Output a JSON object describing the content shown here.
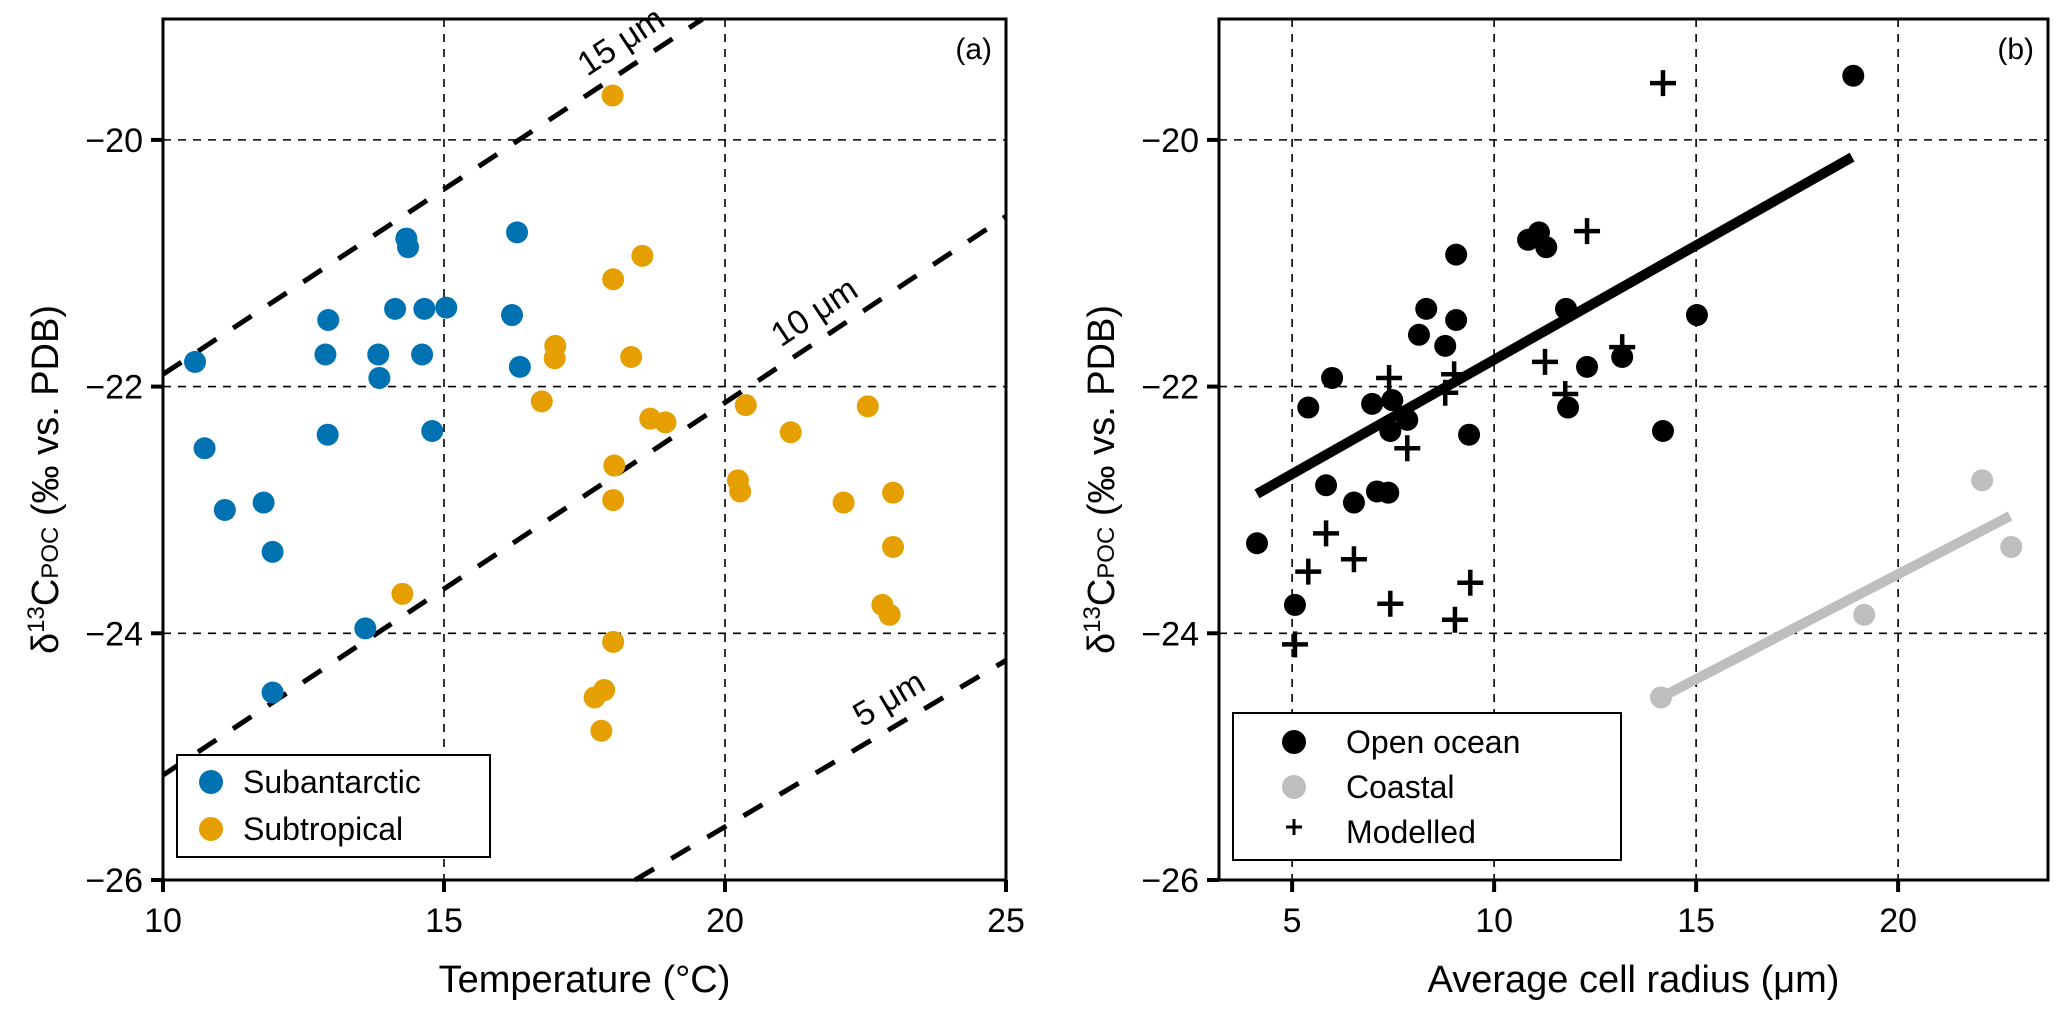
{
  "chart_data": [
    {
      "panel": "(a)",
      "type": "scatter",
      "xlabel": "Temperature (°C)",
      "ylabel": "δ13CPOC (‰ vs. PDB)",
      "ylabel_parts": {
        "delta": "δ",
        "sup": "13",
        "main": "C",
        "sub": "POC",
        "rest": " (‰ vs. PDB)"
      },
      "xlim": [
        10,
        25
      ],
      "ylim": [
        -26,
        -19.02
      ],
      "xticks": [
        10,
        15,
        20,
        25
      ],
      "xtick_labels": [
        "10",
        "15",
        "20",
        "25"
      ],
      "yticks": [
        -26,
        -24,
        -22,
        -20
      ],
      "ytick_labels": [
        "−26",
        "−24",
        "−22",
        "−20"
      ],
      "grid": true,
      "legend": {
        "placement": "bottom-left",
        "entries": [
          "Subantarctic",
          "Subtropical"
        ]
      },
      "series": [
        {
          "name": "Subantarctic",
          "color": "#0072b2",
          "marker": "circle",
          "points": [
            [
              10.57,
              -21.8
            ],
            [
              10.74,
              -22.5
            ],
            [
              11.1,
              -23.0
            ],
            [
              11.79,
              -22.94
            ],
            [
              11.95,
              -23.34
            ],
            [
              11.95,
              -24.48
            ],
            [
              12.94,
              -21.46
            ],
            [
              12.89,
              -21.74
            ],
            [
              12.93,
              -22.39
            ],
            [
              13.83,
              -21.74
            ],
            [
              13.85,
              -21.93
            ],
            [
              14.13,
              -21.37
            ],
            [
              14.33,
              -20.8
            ],
            [
              14.36,
              -20.87
            ],
            [
              14.65,
              -21.37
            ],
            [
              14.61,
              -21.74
            ],
            [
              14.79,
              -22.36
            ],
            [
              15.04,
              -21.36
            ],
            [
              13.6,
              -23.96
            ],
            [
              16.3,
              -20.75
            ],
            [
              16.21,
              -21.42
            ],
            [
              16.35,
              -21.84
            ]
          ]
        },
        {
          "name": "Subtropical",
          "color": "#e69f00",
          "marker": "circle",
          "points": [
            [
              14.26,
              -23.68
            ],
            [
              16.74,
              -22.12
            ],
            [
              16.98,
              -21.67
            ],
            [
              16.97,
              -21.77
            ],
            [
              18.0,
              -19.64
            ],
            [
              18.53,
              -20.94
            ],
            [
              18.01,
              -21.13
            ],
            [
              18.33,
              -21.76
            ],
            [
              18.67,
              -22.26
            ],
            [
              18.94,
              -22.29
            ],
            [
              18.03,
              -22.64
            ],
            [
              18.01,
              -22.92
            ],
            [
              18.01,
              -24.07
            ],
            [
              17.85,
              -24.46
            ],
            [
              17.68,
              -24.52
            ],
            [
              17.8,
              -24.79
            ],
            [
              20.37,
              -22.15
            ],
            [
              20.23,
              -22.76
            ],
            [
              20.27,
              -22.85
            ],
            [
              21.17,
              -22.37
            ],
            [
              22.54,
              -22.16
            ],
            [
              22.11,
              -22.94
            ],
            [
              22.99,
              -22.86
            ],
            [
              22.99,
              -23.3
            ],
            [
              22.8,
              -23.77
            ],
            [
              22.93,
              -23.85
            ]
          ]
        }
      ],
      "reference_lines": [
        {
          "label": "15 μm",
          "style": "dashed",
          "color": "#000000",
          "x": [
            10,
            19.6
          ],
          "y": [
            -21.9,
            -19.02
          ]
        },
        {
          "label": "10 μm",
          "style": "dashed",
          "color": "#000000",
          "x": [
            10,
            25
          ],
          "y": [
            -25.15,
            -20.62
          ]
        },
        {
          "label": "5 μm",
          "style": "dashed",
          "color": "#000000",
          "x": [
            18.4,
            25
          ],
          "y": [
            -26,
            -24.22
          ]
        }
      ]
    },
    {
      "panel": "(b)",
      "type": "scatter",
      "xlabel": "Average cell radius (μm)",
      "ylabel": "δ13CPOC (‰ vs. PDB)",
      "ylabel_parts": {
        "delta": "δ",
        "sup": "13",
        "main": "C",
        "sub": "POC",
        "rest": " (‰ vs. PDB)"
      },
      "xlim": [
        3.19,
        23.71
      ],
      "ylim": [
        -26,
        -19.02
      ],
      "xticks": [
        5,
        10,
        15,
        20
      ],
      "xtick_labels": [
        "5",
        "10",
        "15",
        "20"
      ],
      "yticks": [
        -26,
        -24,
        -22,
        -20
      ],
      "ytick_labels": [
        "−26",
        "−24",
        "−22",
        "−20"
      ],
      "grid": true,
      "legend": {
        "placement": "bottom-left",
        "entries": [
          "Open ocean",
          "Coastal",
          "Modelled"
        ]
      },
      "series": [
        {
          "name": "Open ocean",
          "color": "#000000",
          "marker": "circle",
          "points": [
            [
              4.13,
              -23.27
            ],
            [
              5.07,
              -23.77
            ],
            [
              5.4,
              -22.17
            ],
            [
              5.99,
              -21.93
            ],
            [
              5.84,
              -22.8
            ],
            [
              6.53,
              -22.94
            ],
            [
              6.98,
              -22.14
            ],
            [
              7.1,
              -22.85
            ],
            [
              7.38,
              -22.86
            ],
            [
              7.48,
              -22.11
            ],
            [
              7.43,
              -22.36
            ],
            [
              7.85,
              -22.27
            ],
            [
              8.14,
              -21.58
            ],
            [
              8.32,
              -21.37
            ],
            [
              8.79,
              -21.67
            ],
            [
              9.06,
              -20.93
            ],
            [
              9.06,
              -21.46
            ],
            [
              9.38,
              -22.39
            ],
            [
              10.84,
              -20.81
            ],
            [
              11.11,
              -20.75
            ],
            [
              11.29,
              -20.87
            ],
            [
              11.78,
              -21.37
            ],
            [
              11.83,
              -22.17
            ],
            [
              12.3,
              -21.84
            ],
            [
              13.17,
              -21.76
            ],
            [
              14.18,
              -22.36
            ],
            [
              15.02,
              -21.42
            ],
            [
              18.89,
              -19.48
            ]
          ]
        },
        {
          "name": "Coastal",
          "color": "#bebebe",
          "marker": "circle",
          "points": [
            [
              14.13,
              -24.52
            ],
            [
              19.16,
              -23.85
            ],
            [
              22.08,
              -22.76
            ],
            [
              22.8,
              -23.3
            ]
          ]
        },
        {
          "name": "Modelled",
          "color": "#000000",
          "marker": "plus",
          "points": [
            [
              5.07,
              -24.09
            ],
            [
              5.4,
              -23.5
            ],
            [
              5.84,
              -23.19
            ],
            [
              6.53,
              -23.4
            ],
            [
              7.4,
              -21.93
            ],
            [
              7.43,
              -23.76
            ],
            [
              7.85,
              -22.5
            ],
            [
              8.79,
              -22.05
            ],
            [
              9.01,
              -21.9
            ],
            [
              9.03,
              -23.89
            ],
            [
              9.41,
              -23.59
            ],
            [
              11.26,
              -21.8
            ],
            [
              11.76,
              -22.06
            ],
            [
              12.3,
              -20.74
            ],
            [
              13.17,
              -21.68
            ],
            [
              14.18,
              -19.54
            ]
          ]
        }
      ],
      "fit_lines": [
        {
          "name": "Open ocean fit",
          "color": "#000000",
          "x": [
            4.13,
            18.86
          ],
          "y": [
            -22.87,
            -20.14
          ]
        },
        {
          "name": "Coastal fit",
          "color": "#bebebe",
          "x": [
            14.13,
            22.77
          ],
          "y": [
            -24.52,
            -23.05
          ]
        }
      ]
    }
  ]
}
